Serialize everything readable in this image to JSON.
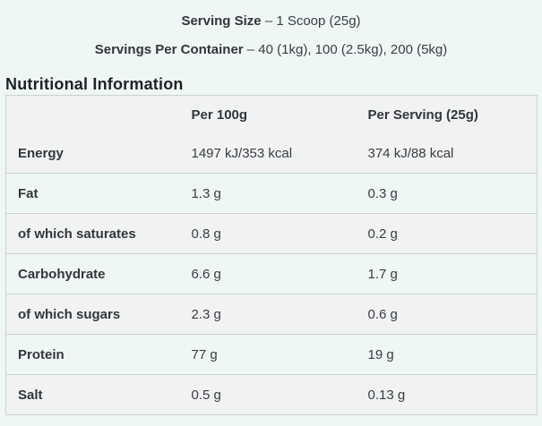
{
  "header_lines": [
    {
      "label": "Serving Size",
      "rest": "– 1 Scoop (25g)"
    },
    {
      "label": "Servings Per Container",
      "rest": "– 40 (1kg), 100 (2.5kg), 200 (5kg)"
    }
  ],
  "section_title": "Nutritional Information",
  "table": {
    "columns": [
      "",
      "Per 100g",
      "Per Serving (25g)"
    ],
    "rows": [
      {
        "label": "Energy",
        "per_100g": "1497 kJ/353 kcal",
        "per_serving": "374 kJ/88 kcal"
      },
      {
        "label": "Fat",
        "per_100g": "1.3 g",
        "per_serving": "0.3 g"
      },
      {
        "label": "of which saturates",
        "per_100g": "0.8 g",
        "per_serving": "0.2 g"
      },
      {
        "label": "Carbohydrate",
        "per_100g": "6.6 g",
        "per_serving": "1.7 g"
      },
      {
        "label": "of which sugars",
        "per_100g": "2.3 g",
        "per_serving": "0.6 g"
      },
      {
        "label": "Protein",
        "per_100g": "77 g",
        "per_serving": "19 g"
      },
      {
        "label": "Salt",
        "per_100g": "0.5 g",
        "per_serving": "0.13 g"
      }
    ]
  },
  "colors": {
    "page_background": "#eff7f5",
    "row_gray": "#f1f2f2",
    "row_mint": "#eef7f4",
    "border": "#cdd2d1",
    "heading_text": "#1e2126",
    "body_text": "#3a3d45"
  }
}
